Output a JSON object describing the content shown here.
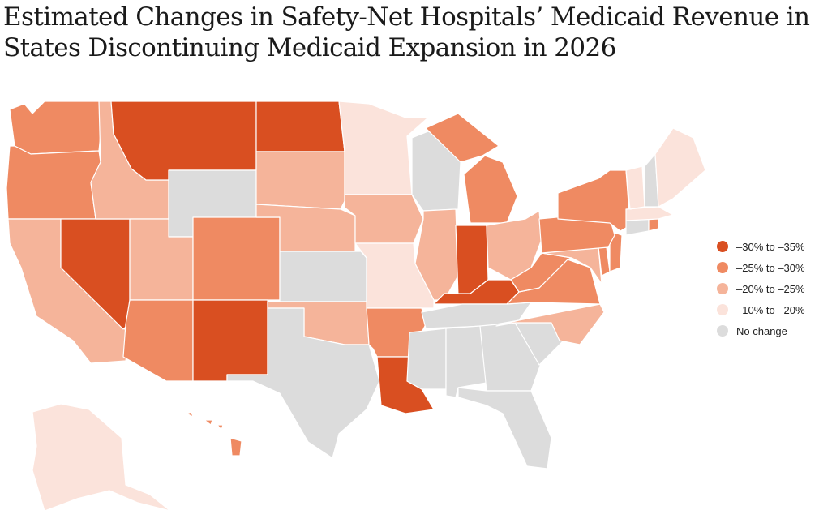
{
  "title": "Estimated Changes in Safety-Net Hospitals’ Medicaid Revenue in States Discontinuing Medicaid Expansion in 2026",
  "colors": {
    "c30_35": "#d94f21",
    "c25_30": "#ef8a62",
    "c20_25": "#f5b49a",
    "c10_20": "#fbe3db",
    "none": "#dcdcdc"
  },
  "legend": [
    {
      "color_key": "c30_35",
      "label": "–30% to –35%"
    },
    {
      "color_key": "c25_30",
      "label": "–25% to –30%"
    },
    {
      "color_key": "c20_25",
      "label": "–20% to –25%"
    },
    {
      "color_key": "c10_20",
      "label": "–10% to –20%"
    },
    {
      "color_key": "none",
      "label": "No change"
    }
  ],
  "states": [
    {
      "name": "Washington",
      "category": "c25_30"
    },
    {
      "name": "Oregon",
      "category": "c25_30"
    },
    {
      "name": "California",
      "category": "c20_25"
    },
    {
      "name": "Nevada",
      "category": "c30_35"
    },
    {
      "name": "Idaho",
      "category": "c20_25"
    },
    {
      "name": "Montana",
      "category": "c30_35"
    },
    {
      "name": "Wyoming",
      "category": "none"
    },
    {
      "name": "Utah",
      "category": "c20_25"
    },
    {
      "name": "Arizona",
      "category": "c25_30"
    },
    {
      "name": "Colorado",
      "category": "c25_30"
    },
    {
      "name": "New Mexico",
      "category": "c30_35"
    },
    {
      "name": "North Dakota",
      "category": "c30_35"
    },
    {
      "name": "South Dakota",
      "category": "c20_25"
    },
    {
      "name": "Nebraska",
      "category": "c20_25"
    },
    {
      "name": "Kansas",
      "category": "none"
    },
    {
      "name": "Oklahoma",
      "category": "c20_25"
    },
    {
      "name": "Texas",
      "category": "none"
    },
    {
      "name": "Minnesota",
      "category": "c10_20"
    },
    {
      "name": "Iowa",
      "category": "c20_25"
    },
    {
      "name": "Missouri",
      "category": "c10_20"
    },
    {
      "name": "Arkansas",
      "category": "c25_30"
    },
    {
      "name": "Louisiana",
      "category": "c30_35"
    },
    {
      "name": "Wisconsin",
      "category": "none"
    },
    {
      "name": "Illinois",
      "category": "c20_25"
    },
    {
      "name": "Michigan",
      "category": "c25_30"
    },
    {
      "name": "Indiana",
      "category": "c30_35"
    },
    {
      "name": "Ohio",
      "category": "c20_25"
    },
    {
      "name": "Kentucky",
      "category": "c30_35"
    },
    {
      "name": "Tennessee",
      "category": "none"
    },
    {
      "name": "Mississippi",
      "category": "none"
    },
    {
      "name": "Alabama",
      "category": "none"
    },
    {
      "name": "Georgia",
      "category": "none"
    },
    {
      "name": "Florida",
      "category": "none"
    },
    {
      "name": "South Carolina",
      "category": "none"
    },
    {
      "name": "North Carolina",
      "category": "c20_25"
    },
    {
      "name": "Virginia",
      "category": "c25_30"
    },
    {
      "name": "West Virginia",
      "category": "c25_30"
    },
    {
      "name": "Maryland",
      "category": "c20_25"
    },
    {
      "name": "Delaware",
      "category": "c25_30"
    },
    {
      "name": "New Jersey",
      "category": "c25_30"
    },
    {
      "name": "Pennsylvania",
      "category": "c25_30"
    },
    {
      "name": "New York",
      "category": "c25_30"
    },
    {
      "name": "Connecticut",
      "category": "none"
    },
    {
      "name": "Rhode Island",
      "category": "c25_30"
    },
    {
      "name": "Massachusetts",
      "category": "c10_20"
    },
    {
      "name": "Vermont",
      "category": "c10_20"
    },
    {
      "name": "New Hampshire",
      "category": "none"
    },
    {
      "name": "Maine",
      "category": "c10_20"
    },
    {
      "name": "Alaska",
      "category": "c10_20"
    },
    {
      "name": "Hawaii",
      "category": "c25_30"
    }
  ]
}
